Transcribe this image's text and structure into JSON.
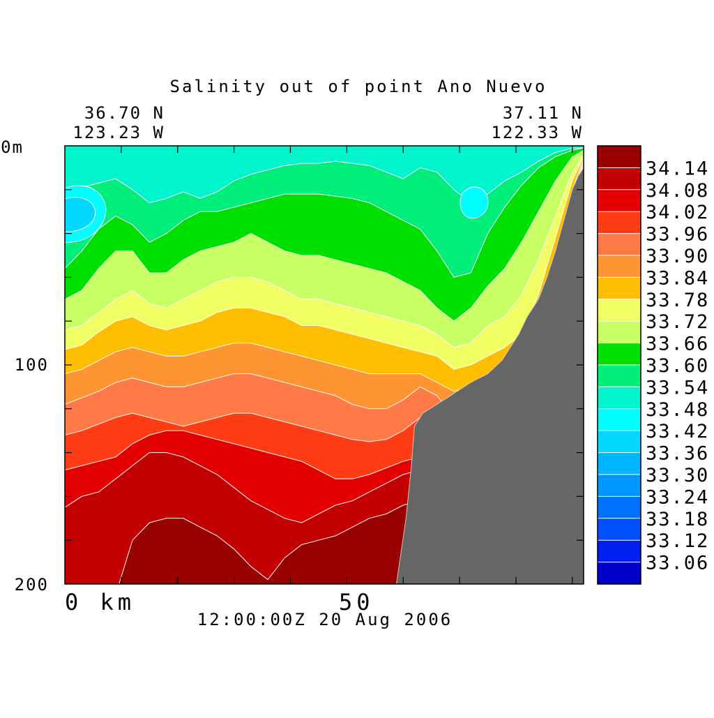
{
  "chart_data": {
    "type": "heatmap",
    "title": "Salinity out of point Ano Nuevo",
    "start_lat": "36.70 N",
    "start_lon": "123.23 W",
    "end_lat": "37.11 N",
    "end_lon": "122.33 W",
    "timestamp": "12:00:00Z  20 Aug 2006",
    "x_unit": "km",
    "y_unit": "m",
    "xlim": [
      0,
      92
    ],
    "ylim": [
      0,
      200
    ],
    "x_ticks": [
      0,
      50
    ],
    "y_ticks": [
      0,
      100,
      200
    ],
    "x_tick_labels": [
      "0 km",
      "50"
    ],
    "y_tick_labels": [
      "0m",
      "100",
      "200"
    ],
    "colorbar_labels": [
      "34.14",
      "34.08",
      "34.02",
      "33.96",
      "33.90",
      "33.84",
      "33.78",
      "33.72",
      "33.66",
      "33.60",
      "33.54",
      "33.48",
      "33.42",
      "33.36",
      "33.30",
      "33.24",
      "33.18",
      "33.12",
      "33.06"
    ],
    "colorbar_colors": [
      "#990000",
      "#c20000",
      "#e30000",
      "#ff3c14",
      "#ff7a46",
      "#ff9432",
      "#ffbe00",
      "#f2ff64",
      "#c8ff64",
      "#00e000",
      "#00ee7a",
      "#00f5cc",
      "#00ffff",
      "#00d8ff",
      "#00b4ff",
      "#0096ff",
      "#0070ff",
      "#0050ff",
      "#0020f0",
      "#0000c8"
    ],
    "land_color": "#666666",
    "contour_line_color": "#ffffff",
    "salinity_bands": [
      {
        "value": 33.48,
        "color": "#00f5cc"
      },
      {
        "value": 33.54,
        "color": "#00ee7a"
      },
      {
        "value": 33.6,
        "color": "#00e000"
      },
      {
        "value": 33.66,
        "color": "#c8ff64"
      },
      {
        "value": 33.72,
        "color": "#f2ff64"
      },
      {
        "value": 33.78,
        "color": "#ffbe00"
      },
      {
        "value": 33.84,
        "color": "#ff9432"
      },
      {
        "value": 33.9,
        "color": "#ff7a46"
      },
      {
        "value": 33.96,
        "color": "#ff3c14"
      },
      {
        "value": 34.02,
        "color": "#e30000"
      },
      {
        "value": 34.08,
        "color": "#c20000"
      }
    ],
    "grid": false,
    "legend": "right"
  }
}
